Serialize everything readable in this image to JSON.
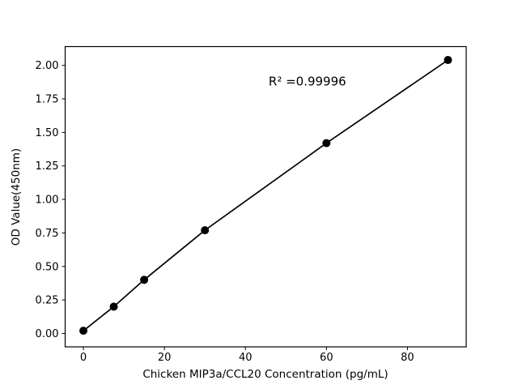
{
  "figure": {
    "background": "#ffffff",
    "foreground": "#000000"
  },
  "chart_data": {
    "type": "line",
    "title": "",
    "x": [
      0,
      7.5,
      15,
      30,
      60,
      90
    ],
    "y": [
      0.02,
      0.2,
      0.4,
      0.77,
      1.42,
      2.04
    ],
    "xlabel": "Chicken MIP3a/CCL20 Concentration (pg/mL)",
    "ylabel": "OD Value(450nm)",
    "xlim": [
      -4.5,
      94.5
    ],
    "ylim": [
      -0.1,
      2.14
    ],
    "xticks": [
      0,
      20,
      40,
      60,
      80
    ],
    "xtick_labels": [
      "0",
      "20",
      "40",
      "60",
      "80"
    ],
    "yticks": [
      0.0,
      0.25,
      0.5,
      0.75,
      1.0,
      1.25,
      1.5,
      1.75,
      2.0
    ],
    "ytick_labels": [
      "0.00",
      "0.25",
      "0.50",
      "0.75",
      "1.00",
      "1.25",
      "1.50",
      "1.75",
      "2.00"
    ],
    "grid": false,
    "legend": null,
    "line_color": "#000000",
    "marker_color": "#000000",
    "annotation": {
      "text": "R² =0.99996",
      "x": 55.3,
      "y": 1.88
    }
  }
}
